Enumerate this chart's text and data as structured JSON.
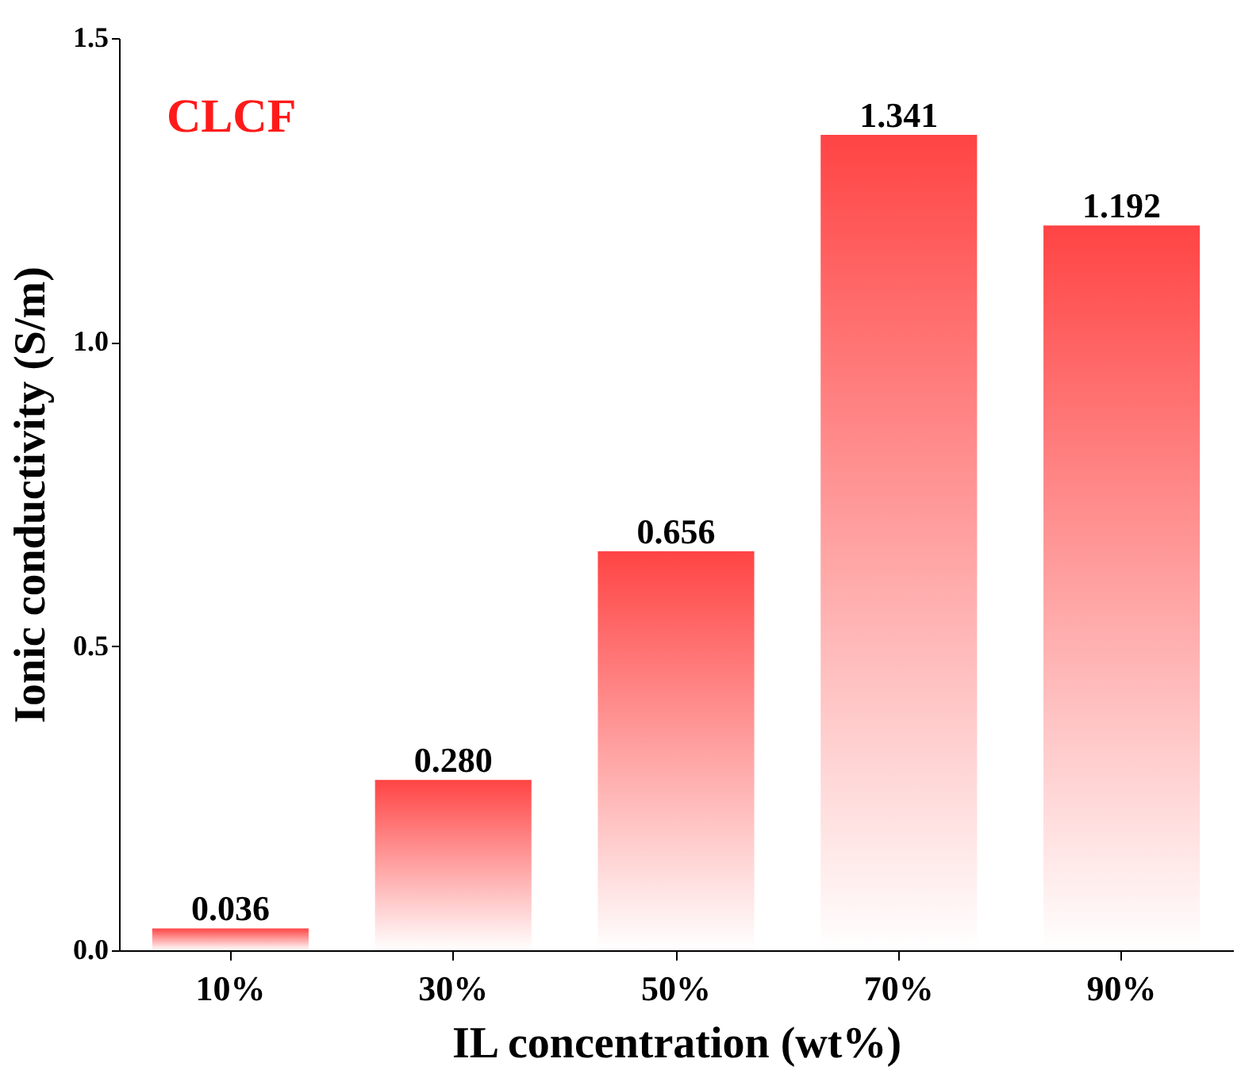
{
  "chart_data": {
    "type": "bar",
    "xlabel": "IL concentration (wt%)",
    "ylabel": "Ionic conductivity (S/m)",
    "categories": [
      "10%",
      "30%",
      "50%",
      "70%",
      "90%"
    ],
    "values": [
      0.036,
      0.28,
      0.656,
      1.341,
      1.192
    ],
    "value_labels": [
      "0.036",
      "0.280",
      "0.656",
      "1.341",
      "1.192"
    ],
    "color": "#ff4444",
    "ylim": [
      0,
      1.5
    ],
    "yticks": [
      {
        "value": 0,
        "label": "0.0"
      },
      0.5,
      {
        "value": 1,
        "label": "1.0"
      },
      1.5
    ],
    "annotations": [
      "CLCF"
    ],
    "grid": false
  }
}
